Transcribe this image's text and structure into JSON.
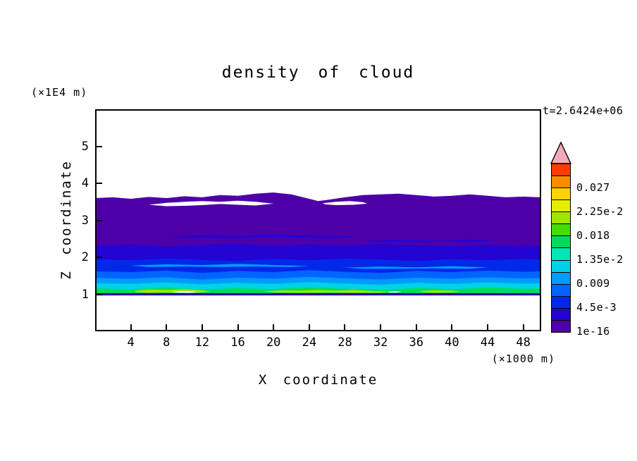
{
  "chart_data": {
    "type": "filled_contour",
    "title": "density of cloud",
    "time_label": "t=2.6424e+06",
    "xlabel": "X coordinate",
    "x_unit": "(×1000 m)",
    "ylabel": "Z coordinate",
    "y_unit": "(×1E4 m)",
    "xlim": [
      0,
      50
    ],
    "ylim": [
      0,
      6
    ],
    "xticks": [
      4,
      8,
      12,
      16,
      20,
      24,
      28,
      32,
      36,
      40,
      44,
      48
    ],
    "yticks": [
      1,
      2,
      3,
      4,
      5
    ],
    "grid": false,
    "legend_position": "right-colorbar",
    "colorbar": {
      "segments": [
        "#4e00a8",
        "#2404d2",
        "#0028e8",
        "#0064ff",
        "#009cff",
        "#00d2e6",
        "#00e6b4",
        "#00dc5a",
        "#46dc00",
        "#a0e600",
        "#e6ee00",
        "#ffd200",
        "#ff8c00",
        "#ff3c00"
      ],
      "arrow_color": "#f2aab8",
      "labels": [
        {
          "text": "1e-16",
          "boundary": 0
        },
        {
          "text": "4.5e-3",
          "boundary": 2
        },
        {
          "text": "0.009",
          "boundary": 4
        },
        {
          "text": "1.35e-2",
          "boundary": 6
        },
        {
          "text": "0.018",
          "boundary": 8
        },
        {
          "text": "2.25e-2",
          "boundary": 10
        },
        {
          "text": "0.027",
          "boundary": 12
        }
      ]
    },
    "base_bottom": 0.99,
    "shapes": [
      {
        "name": "band-purple-1e-16",
        "kind": "band",
        "color": "#4e00a8",
        "top": [
          [
            0,
            3.6
          ],
          [
            2,
            3.62
          ],
          [
            4,
            3.58
          ],
          [
            6,
            3.63
          ],
          [
            8,
            3.6
          ],
          [
            10,
            3.65
          ],
          [
            12,
            3.62
          ],
          [
            14,
            3.68
          ],
          [
            16,
            3.66
          ],
          [
            18,
            3.72
          ],
          [
            20,
            3.75
          ],
          [
            22,
            3.7
          ],
          [
            24,
            3.58
          ],
          [
            25,
            3.52
          ],
          [
            26,
            3.55
          ],
          [
            28,
            3.62
          ],
          [
            30,
            3.68
          ],
          [
            32,
            3.7
          ],
          [
            34,
            3.72
          ],
          [
            36,
            3.68
          ],
          [
            38,
            3.64
          ],
          [
            40,
            3.66
          ],
          [
            42,
            3.7
          ],
          [
            44,
            3.66
          ],
          [
            46,
            3.62
          ],
          [
            48,
            3.64
          ],
          [
            50,
            3.62
          ]
        ]
      },
      {
        "name": "streak-navy-a",
        "kind": "poly",
        "color": "#2404d2",
        "points": [
          [
            8,
            2.56
          ],
          [
            12,
            2.6
          ],
          [
            16,
            2.58
          ],
          [
            20,
            2.62
          ],
          [
            24,
            2.59
          ],
          [
            28,
            2.57
          ],
          [
            30,
            2.55
          ],
          [
            27,
            2.52
          ],
          [
            23,
            2.53
          ],
          [
            19,
            2.54
          ],
          [
            15,
            2.52
          ],
          [
            11,
            2.53
          ]
        ]
      },
      {
        "name": "streak-navy-b",
        "kind": "poly",
        "color": "#2404d2",
        "points": [
          [
            30,
            2.44
          ],
          [
            34,
            2.47
          ],
          [
            38,
            2.45
          ],
          [
            42,
            2.48
          ],
          [
            45,
            2.45
          ],
          [
            43,
            2.41
          ],
          [
            39,
            2.42
          ],
          [
            35,
            2.41
          ],
          [
            31,
            2.41
          ]
        ]
      },
      {
        "name": "band-navy-2.25e-3",
        "kind": "band",
        "color": "#2404d2",
        "top": [
          [
            0,
            2.32
          ],
          [
            4,
            2.35
          ],
          [
            8,
            2.3
          ],
          [
            12,
            2.34
          ],
          [
            16,
            2.37
          ],
          [
            20,
            2.31
          ],
          [
            24,
            2.35
          ],
          [
            28,
            2.32
          ],
          [
            32,
            2.36
          ],
          [
            36,
            2.33
          ],
          [
            40,
            2.3
          ],
          [
            44,
            2.34
          ],
          [
            48,
            2.31
          ],
          [
            50,
            2.32
          ]
        ]
      },
      {
        "name": "band-blue-4.5e-3",
        "kind": "band",
        "color": "#0028e8",
        "top": [
          [
            0,
            1.95
          ],
          [
            4,
            1.92
          ],
          [
            8,
            1.97
          ],
          [
            12,
            1.93
          ],
          [
            16,
            1.9
          ],
          [
            20,
            1.96
          ],
          [
            24,
            1.92
          ],
          [
            28,
            1.97
          ],
          [
            32,
            1.94
          ],
          [
            36,
            1.9
          ],
          [
            40,
            1.95
          ],
          [
            44,
            1.92
          ],
          [
            48,
            1.96
          ],
          [
            50,
            1.94
          ]
        ]
      },
      {
        "name": "streak-azure-a",
        "kind": "poly",
        "color": "#009cff",
        "points": [
          [
            4,
            1.78
          ],
          [
            8,
            1.81
          ],
          [
            12,
            1.79
          ],
          [
            16,
            1.82
          ],
          [
            20,
            1.79
          ],
          [
            24,
            1.77
          ],
          [
            22,
            1.74
          ],
          [
            18,
            1.75
          ],
          [
            14,
            1.74
          ],
          [
            10,
            1.75
          ],
          [
            6,
            1.74
          ]
        ]
      },
      {
        "name": "streak-azure-b",
        "kind": "poly",
        "color": "#009cff",
        "points": [
          [
            28,
            1.72
          ],
          [
            32,
            1.75
          ],
          [
            36,
            1.73
          ],
          [
            40,
            1.76
          ],
          [
            44,
            1.73
          ],
          [
            42,
            1.69
          ],
          [
            38,
            1.7
          ],
          [
            34,
            1.69
          ],
          [
            30,
            1.69
          ]
        ]
      },
      {
        "name": "band-midblue-6.75e-3",
        "kind": "band",
        "color": "#0064ff",
        "top": [
          [
            0,
            1.62
          ],
          [
            4,
            1.6
          ],
          [
            8,
            1.64
          ],
          [
            12,
            1.58
          ],
          [
            16,
            1.63
          ],
          [
            20,
            1.6
          ],
          [
            24,
            1.65
          ],
          [
            28,
            1.61
          ],
          [
            32,
            1.58
          ],
          [
            36,
            1.63
          ],
          [
            40,
            1.6
          ],
          [
            44,
            1.64
          ],
          [
            48,
            1.61
          ],
          [
            50,
            1.62
          ]
        ]
      },
      {
        "name": "band-azure-0.009",
        "kind": "band",
        "color": "#009cff",
        "top": [
          [
            0,
            1.44
          ],
          [
            4,
            1.42
          ],
          [
            8,
            1.46
          ],
          [
            12,
            1.4
          ],
          [
            16,
            1.45
          ],
          [
            20,
            1.42
          ],
          [
            24,
            1.47
          ],
          [
            28,
            1.43
          ],
          [
            32,
            1.4
          ],
          [
            36,
            1.45
          ],
          [
            40,
            1.42
          ],
          [
            44,
            1.46
          ],
          [
            48,
            1.43
          ],
          [
            50,
            1.44
          ]
        ]
      },
      {
        "name": "band-cyan-1.125e-2",
        "kind": "band",
        "color": "#00d2e6",
        "top": [
          [
            0,
            1.3
          ],
          [
            4,
            1.28
          ],
          [
            8,
            1.32
          ],
          [
            12,
            1.27
          ],
          [
            16,
            1.31
          ],
          [
            20,
            1.28
          ],
          [
            24,
            1.33
          ],
          [
            28,
            1.29
          ],
          [
            32,
            1.26
          ],
          [
            36,
            1.31
          ],
          [
            40,
            1.28
          ],
          [
            44,
            1.32
          ],
          [
            48,
            1.29
          ],
          [
            50,
            1.3
          ]
        ]
      },
      {
        "name": "band-green-1.35e-2",
        "kind": "band",
        "color": "#00dc5a",
        "top": [
          [
            0,
            1.16
          ],
          [
            4,
            1.14
          ],
          [
            8,
            1.18
          ],
          [
            12,
            1.13
          ],
          [
            16,
            1.17
          ],
          [
            20,
            1.14
          ],
          [
            24,
            1.19
          ],
          [
            28,
            1.15
          ],
          [
            32,
            1.12
          ],
          [
            36,
            1.17
          ],
          [
            40,
            1.14
          ],
          [
            44,
            1.18
          ],
          [
            48,
            1.15
          ],
          [
            50,
            1.16
          ]
        ]
      },
      {
        "name": "patch-yellowgreen-a",
        "kind": "poly",
        "color": "#a0e600",
        "points": [
          [
            4.5,
            1.1
          ],
          [
            6,
            1.13
          ],
          [
            8,
            1.12
          ],
          [
            10,
            1.14
          ],
          [
            12,
            1.11
          ],
          [
            13,
            1.08
          ],
          [
            12,
            1.05
          ],
          [
            10,
            1.04
          ],
          [
            8,
            1.05
          ],
          [
            6,
            1.04
          ],
          [
            4.5,
            1.06
          ]
        ]
      },
      {
        "name": "patch-yellowgreen-b",
        "kind": "poly",
        "color": "#a0e600",
        "points": [
          [
            19,
            1.08
          ],
          [
            21,
            1.11
          ],
          [
            23,
            1.1
          ],
          [
            25,
            1.12
          ],
          [
            27,
            1.1
          ],
          [
            29,
            1.12
          ],
          [
            31,
            1.09
          ],
          [
            33,
            1.07
          ],
          [
            32,
            1.04
          ],
          [
            29,
            1.04
          ],
          [
            26,
            1.05
          ],
          [
            23,
            1.04
          ],
          [
            20,
            1.05
          ]
        ]
      },
      {
        "name": "patch-yellowgreen-c",
        "kind": "poly",
        "color": "#a0e600",
        "points": [
          [
            36.5,
            1.09
          ],
          [
            38,
            1.11
          ],
          [
            40,
            1.1
          ],
          [
            41,
            1.07
          ],
          [
            40,
            1.05
          ],
          [
            38,
            1.04
          ],
          [
            36.5,
            1.06
          ]
        ]
      },
      {
        "name": "cloud-base-line",
        "kind": "poly",
        "color": "#2a0898",
        "points": [
          [
            0,
            1.03
          ],
          [
            50,
            1.03
          ],
          [
            50,
            0.97
          ],
          [
            0,
            0.97
          ]
        ]
      },
      {
        "name": "white-gap-a",
        "kind": "poly",
        "color": "#ffffff",
        "points": [
          [
            6,
            3.42
          ],
          [
            8,
            3.47
          ],
          [
            10,
            3.5
          ],
          [
            12,
            3.52
          ],
          [
            14,
            3.5
          ],
          [
            16,
            3.53
          ],
          [
            18,
            3.5
          ],
          [
            20,
            3.45
          ],
          [
            18,
            3.4
          ],
          [
            16,
            3.42
          ],
          [
            14,
            3.44
          ],
          [
            12,
            3.41
          ],
          [
            10,
            3.39
          ],
          [
            8,
            3.38
          ]
        ]
      },
      {
        "name": "white-gap-b",
        "kind": "poly",
        "color": "#ffffff",
        "points": [
          [
            25.5,
            3.46
          ],
          [
            27,
            3.5
          ],
          [
            28.5,
            3.52
          ],
          [
            30,
            3.49
          ],
          [
            30.5,
            3.45
          ],
          [
            29,
            3.42
          ],
          [
            27,
            3.41
          ],
          [
            25.8,
            3.43
          ]
        ]
      },
      {
        "name": "white-speck-a",
        "kind": "poly",
        "color": "#ffffff",
        "points": [
          [
            8.5,
            1.06
          ],
          [
            9.5,
            1.085
          ],
          [
            10.8,
            1.08
          ],
          [
            11.5,
            1.055
          ],
          [
            10.5,
            1.04
          ],
          [
            9.3,
            1.045
          ]
        ]
      },
      {
        "name": "white-speck-b",
        "kind": "poly",
        "color": "#ffffff",
        "points": [
          [
            32.8,
            1.07
          ],
          [
            33.6,
            1.085
          ],
          [
            34.4,
            1.07
          ],
          [
            33.8,
            1.05
          ],
          [
            33.0,
            1.05
          ]
        ]
      }
    ]
  }
}
